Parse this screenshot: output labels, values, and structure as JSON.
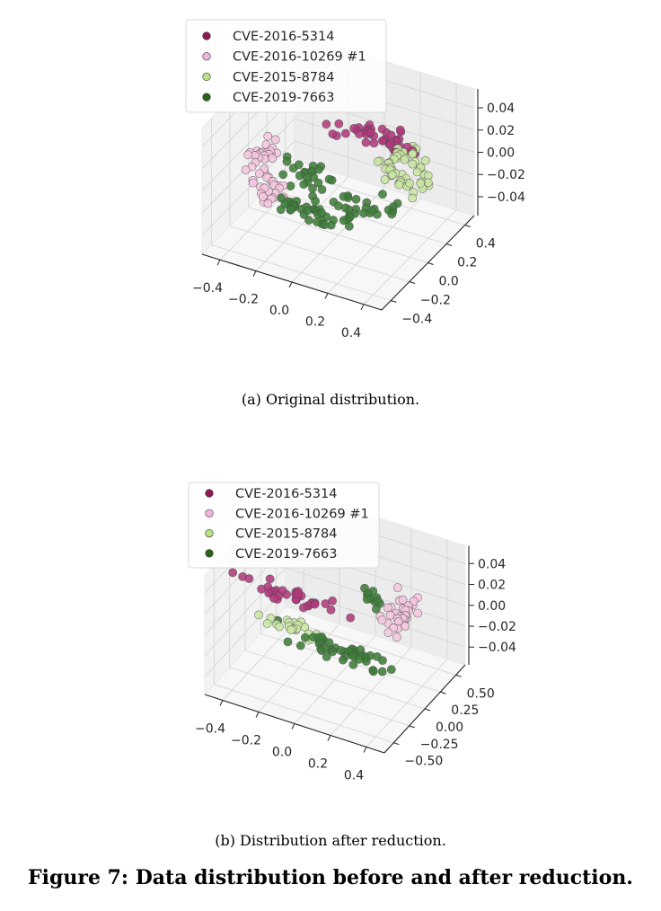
{
  "chart_data": [
    {
      "type": "scatter",
      "dimensions": 3,
      "caption": "(a)  Original distribution.",
      "xlim": [
        -0.5,
        0.5
      ],
      "ylim": [
        -0.5,
        0.5
      ],
      "zlim": [
        -0.057,
        0.057
      ],
      "xticks": [
        "−0.4",
        "−0.2",
        "0.0",
        "0.2",
        "0.4"
      ],
      "xtick_values": [
        -0.4,
        -0.2,
        0,
        0.2,
        0.4
      ],
      "yticks": [
        "−0.4",
        "−0.2",
        "0.0",
        "0.2",
        "0.4"
      ],
      "ytick_values": [
        -0.4,
        -0.2,
        0,
        0.2,
        0.4
      ],
      "zticks": [
        "−0.04",
        "−0.02",
        "0.00",
        "0.02",
        "0.04"
      ],
      "ztick_values": [
        -0.04,
        -0.02,
        0,
        0.02,
        0.04
      ],
      "legend_position": "top-left",
      "series": [
        {
          "name": "CVE-2016-5314",
          "color": "#8e1a52",
          "point_color": "#b03a7c",
          "clusters": [
            {
              "type": "ring",
              "r": [
                0.33,
                0.45
              ],
              "theta": [
                55,
                125
              ],
              "z": 0.002,
              "n": 45
            }
          ]
        },
        {
          "name": "CVE-2016-10269 #1",
          "color": "#f1b6da",
          "point_color": "#f5c6df",
          "clusters": [
            {
              "type": "ring",
              "r": [
                0.33,
                0.46
              ],
              "theta": [
                170,
                250
              ],
              "z": 0.0,
              "n": 50
            }
          ]
        },
        {
          "name": "CVE-2015-8784",
          "color": "#b8e186",
          "point_color": "#c9e6a4",
          "clusters": [
            {
              "type": "ring",
              "r": [
                0.22,
                0.46
              ],
              "theta": [
                0,
                60
              ],
              "z": 0.0,
              "n": 55
            }
          ]
        },
        {
          "name": "CVE-2019-7663",
          "color": "#276419",
          "point_color": "#3f7e3a",
          "clusters": [
            {
              "type": "ring",
              "r": [
                0.32,
                0.45
              ],
              "theta": [
                250,
                345
              ],
              "z": -0.002,
              "n": 55
            },
            {
              "type": "ring",
              "r": [
                0.08,
                0.3
              ],
              "theta": [
                180,
                360
              ],
              "z": 0.0,
              "n": 30
            }
          ]
        }
      ]
    },
    {
      "type": "scatter",
      "dimensions": 3,
      "caption": "(b)  Distribution after reduction.",
      "xlim": [
        -0.5,
        0.5
      ],
      "ylim": [
        -0.65,
        0.65
      ],
      "zlim": [
        -0.057,
        0.057
      ],
      "xticks": [
        "−0.4",
        "−0.2",
        "0.0",
        "0.2",
        "0.4"
      ],
      "xtick_values": [
        -0.4,
        -0.2,
        0,
        0.2,
        0.4
      ],
      "yticks": [
        "−0.50",
        "−0.25",
        "0.00",
        "0.25",
        "0.50"
      ],
      "ytick_values": [
        -0.5,
        -0.25,
        0,
        0.25,
        0.5
      ],
      "zticks": [
        "−0.04",
        "−0.02",
        "0.00",
        "0.02",
        "0.04"
      ],
      "ztick_values": [
        -0.04,
        -0.02,
        0,
        0.02,
        0.04
      ],
      "legend_position": "top-left",
      "series": [
        {
          "name": "CVE-2016-5314",
          "color": "#8e1a52",
          "point_color": "#b03a7c",
          "clusters": [
            {
              "type": "gauss",
              "center": [
                -0.27,
                0.1,
                0.0
              ],
              "spread": [
                0.12,
                0.03,
                0.003
              ],
              "n": 35
            }
          ]
        },
        {
          "name": "CVE-2016-10269 #1",
          "color": "#f1b6da",
          "point_color": "#f5c6df",
          "clusters": [
            {
              "type": "gauss",
              "center": [
                0.26,
                0.29,
                0.0
              ],
              "spread": [
                0.04,
                0.12,
                0.004
              ],
              "n": 35
            }
          ]
        },
        {
          "name": "CVE-2015-8784",
          "color": "#b8e186",
          "point_color": "#c9e6a4",
          "clusters": [
            {
              "type": "gauss",
              "center": [
                -0.19,
                -0.23,
                0.0
              ],
              "spread": [
                0.06,
                0.04,
                0.003
              ],
              "n": 22
            }
          ]
        },
        {
          "name": "CVE-2019-7663",
          "color": "#276419",
          "point_color": "#3f7e3a",
          "clusters": [
            {
              "type": "gauss",
              "center": [
                0.18,
                -0.33,
                0.0
              ],
              "spread": [
                0.16,
                0.04,
                0.003
              ],
              "n": 45
            },
            {
              "type": "gauss",
              "center": [
                0.07,
                0.4,
                0.0
              ],
              "spread": [
                0.03,
                0.05,
                0.004
              ],
              "n": 12
            }
          ]
        }
      ]
    }
  ],
  "figure_caption": "Figure 7: Data distribution before and after reduction."
}
